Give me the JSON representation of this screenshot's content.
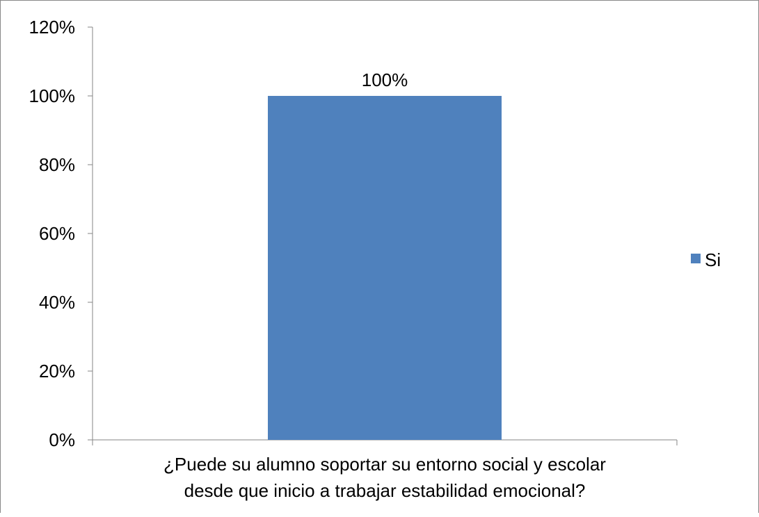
{
  "chart_data": {
    "type": "bar",
    "categories": [
      "¿Puede su alumno soportar su entorno social y escolar desde que inicio a trabajar estabilidad emocional?"
    ],
    "category_label_lines": [
      "¿Puede su alumno soportar su entorno social y escolar",
      "desde que inicio a trabajar estabilidad emocional?"
    ],
    "series": [
      {
        "name": "Si",
        "values": [
          100
        ],
        "color": "#4f81bd"
      }
    ],
    "data_labels": [
      "100%"
    ],
    "ylim": [
      0,
      120
    ],
    "yticks": [
      0,
      20,
      40,
      60,
      80,
      100,
      120
    ],
    "ytick_labels": [
      "0%",
      "20%",
      "40%",
      "60%",
      "80%",
      "100%",
      "120%"
    ],
    "grid": false,
    "legend_position": "right"
  }
}
